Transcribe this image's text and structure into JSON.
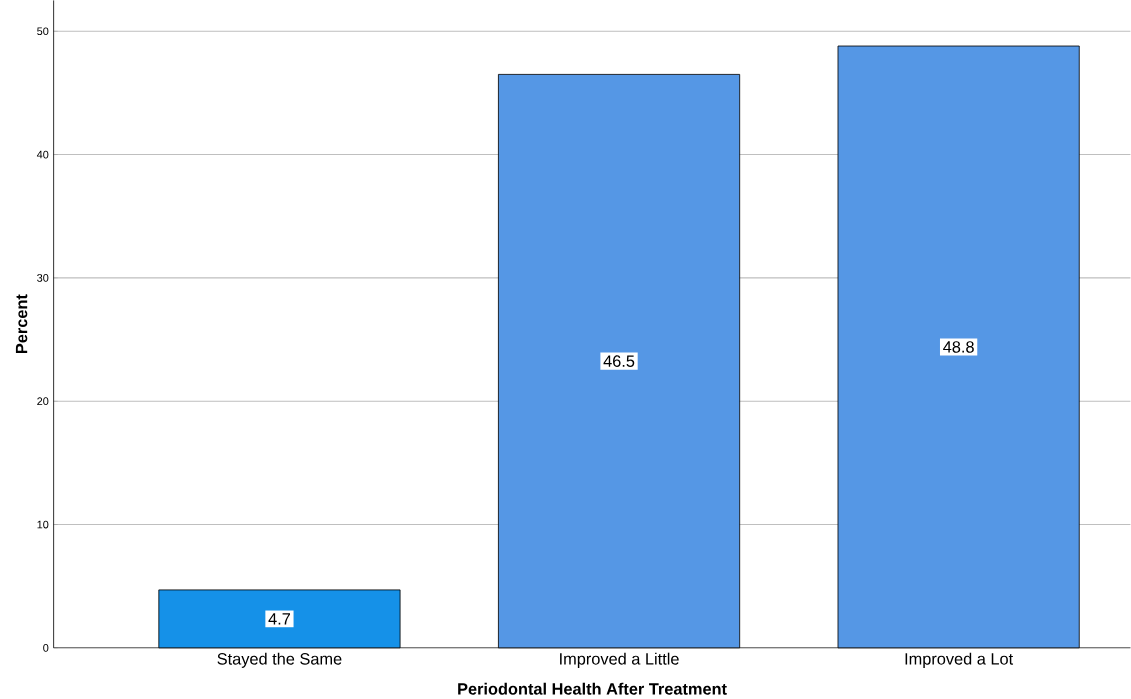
{
  "chart_data": {
    "type": "bar",
    "xlabel": "Periodontal Health After Treatment",
    "ylabel": "Percent",
    "categories": [
      "Stayed the Same",
      "Improved a Little",
      "Improved a Lot"
    ],
    "values": [
      4.7,
      46.5,
      48.8
    ],
    "value_labels": [
      "4.7",
      "46.5",
      "48.8"
    ],
    "colors": [
      "#1591e8",
      "#5597e5",
      "#5597e5"
    ],
    "ylim": [
      0,
      52.5
    ],
    "yticks": [
      0,
      10,
      20,
      30,
      40,
      50
    ],
    "grid": "y"
  }
}
